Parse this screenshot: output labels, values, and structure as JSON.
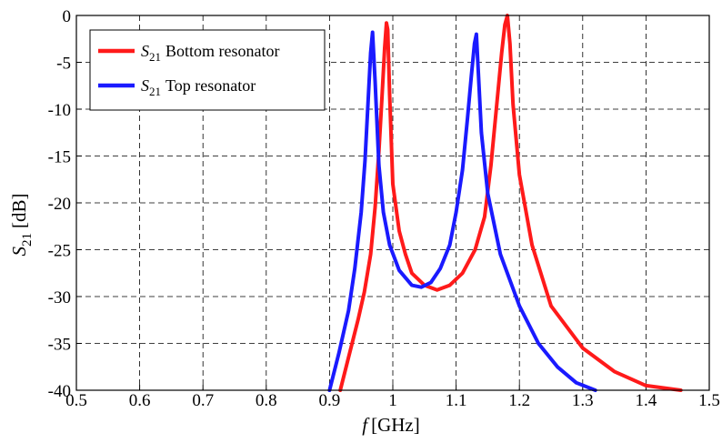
{
  "chart_data": {
    "type": "line",
    "title": "",
    "xlabel": {
      "symbol": "f",
      "unit": "[GHz]"
    },
    "ylabel": {
      "symbol": "S",
      "subscript": "21",
      "unit": "[dB]"
    },
    "xlim": [
      0.5,
      1.5
    ],
    "ylim": [
      -40,
      0
    ],
    "xticks": [
      "0.5",
      "0.6",
      "0.7",
      "0.8",
      "0.9",
      "1",
      "1.1",
      "1.2",
      "1.3",
      "1.4",
      "1.5"
    ],
    "yticks": [
      "0",
      "-5",
      "-10",
      "-15",
      "-20",
      "-25",
      "-30",
      "-35",
      "-40"
    ],
    "grid": true,
    "legend_position": "top-left",
    "series": [
      {
        "name": "Bottom resonator",
        "legend_symbol": "S",
        "legend_subscript": "21",
        "color": "#ff1a1a",
        "x": [
          0.917,
          0.93,
          0.945,
          0.955,
          0.965,
          0.972,
          0.978,
          0.983,
          0.987,
          0.99,
          0.992,
          0.995,
          1.0,
          1.01,
          1.02,
          1.03,
          1.05,
          1.07,
          1.09,
          1.11,
          1.13,
          1.145,
          1.155,
          1.165,
          1.172,
          1.177,
          1.181,
          1.185,
          1.19,
          1.2,
          1.22,
          1.25,
          1.3,
          1.35,
          1.4,
          1.455
        ],
        "y": [
          -40,
          -36.5,
          -32.5,
          -29.5,
          -25.5,
          -20.5,
          -14.5,
          -8.5,
          -3.5,
          -0.8,
          -1.5,
          -8.5,
          -18,
          -23,
          -25.5,
          -27.5,
          -28.8,
          -29.3,
          -28.8,
          -27.5,
          -25,
          -21.5,
          -16,
          -9,
          -4,
          -1,
          0,
          -3,
          -9.5,
          -17,
          -24.5,
          -31,
          -35.5,
          -38,
          -39.5,
          -40
        ]
      },
      {
        "name": "Top resonator",
        "legend_symbol": "S",
        "legend_subscript": "21",
        "color": "#1a1aff",
        "x": [
          0.9,
          0.915,
          0.93,
          0.94,
          0.95,
          0.956,
          0.961,
          0.965,
          0.968,
          0.972,
          0.978,
          0.985,
          0.995,
          1.01,
          1.03,
          1.045,
          1.06,
          1.075,
          1.09,
          1.1,
          1.11,
          1.118,
          1.124,
          1.129,
          1.132,
          1.135,
          1.14,
          1.15,
          1.17,
          1.2,
          1.23,
          1.26,
          1.29,
          1.32
        ],
        "y": [
          -40,
          -36,
          -31.5,
          -27,
          -21,
          -15.5,
          -9,
          -4,
          -1.8,
          -7,
          -16,
          -21,
          -24.5,
          -27.2,
          -28.8,
          -29,
          -28.5,
          -27,
          -24.5,
          -21,
          -16.5,
          -11,
          -6.5,
          -3,
          -2,
          -6,
          -12.5,
          -19,
          -25.5,
          -31,
          -35,
          -37.5,
          -39.2,
          -40
        ]
      }
    ]
  }
}
